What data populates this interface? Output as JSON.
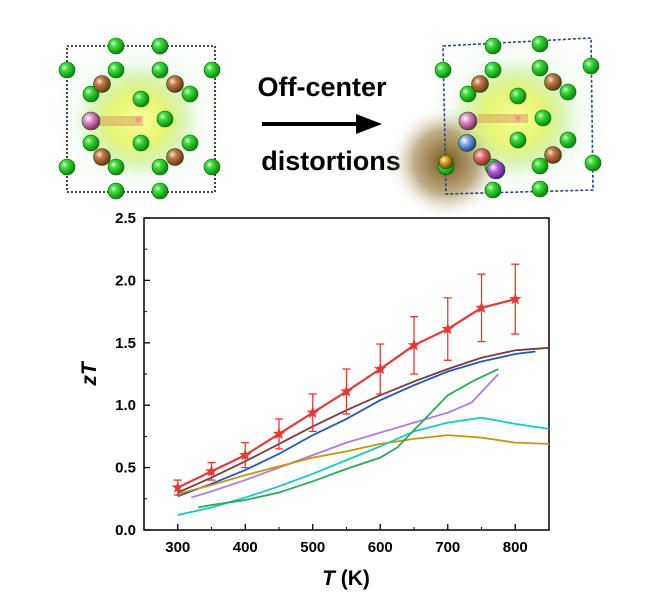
{
  "illustration": {
    "caption_line1": "Off-center",
    "caption_line2": "distortions"
  },
  "colors": {
    "green_atom": "#22cc22",
    "brown_atom": "#b5673a",
    "pink_atom": "#c8509a",
    "blue_atom": "#5a8ad6",
    "purple_atom": "#a13cc8",
    "red_atom": "#d04848",
    "glow": "#e8f560"
  },
  "chart_data": {
    "type": "line",
    "title": "",
    "xlabel": "T (K)",
    "xlabel_parts": [
      "T",
      " (K)"
    ],
    "ylabel": "zT",
    "ylabel_parts": [
      "z",
      "T"
    ],
    "xlim": [
      250,
      850
    ],
    "ylim": [
      0.0,
      2.5
    ],
    "xticks": [
      "300",
      "400",
      "500",
      "600",
      "700",
      "800"
    ],
    "xtick_values": [
      300,
      400,
      500,
      600,
      700,
      800
    ],
    "yticks": [
      "0.0",
      "0.5",
      "1.0",
      "1.5",
      "2.0",
      "2.5"
    ],
    "ytick_values": [
      0.0,
      0.5,
      1.0,
      1.5,
      2.0,
      2.5
    ],
    "series": [
      {
        "name": "red-starred",
        "color": "#e53935",
        "marker": "star",
        "x": [
          300,
          350,
          400,
          450,
          500,
          550,
          600,
          650,
          700,
          750,
          800
        ],
        "y": [
          0.34,
          0.47,
          0.6,
          0.77,
          0.94,
          1.11,
          1.29,
          1.48,
          1.61,
          1.78,
          1.85
        ],
        "err": [
          0.06,
          0.07,
          0.1,
          0.12,
          0.15,
          0.18,
          0.2,
          0.23,
          0.25,
          0.27,
          0.28
        ]
      },
      {
        "name": "brown",
        "color": "#7a3b3b",
        "x": [
          300,
          350,
          400,
          450,
          500,
          550,
          600,
          650,
          700,
          750,
          800,
          850
        ],
        "y": [
          0.3,
          0.42,
          0.55,
          0.69,
          0.83,
          0.96,
          1.08,
          1.19,
          1.29,
          1.38,
          1.44,
          1.46
        ]
      },
      {
        "name": "blue",
        "color": "#1f57c4",
        "x": [
          300,
          350,
          400,
          450,
          500,
          550,
          600,
          650,
          700,
          750,
          800,
          830
        ],
        "y": [
          0.27,
          0.37,
          0.48,
          0.61,
          0.76,
          0.89,
          1.04,
          1.16,
          1.27,
          1.35,
          1.41,
          1.43
        ]
      },
      {
        "name": "purple",
        "color": "#b07ae0",
        "x": [
          320,
          350,
          400,
          450,
          500,
          550,
          600,
          650,
          700,
          735,
          775
        ],
        "y": [
          0.26,
          0.31,
          0.4,
          0.5,
          0.6,
          0.7,
          0.78,
          0.86,
          0.94,
          1.02,
          1.25
        ]
      },
      {
        "name": "gold",
        "color": "#c8960a",
        "x": [
          300,
          350,
          400,
          450,
          500,
          550,
          600,
          650,
          700,
          750,
          800,
          850
        ],
        "y": [
          0.29,
          0.36,
          0.44,
          0.51,
          0.58,
          0.63,
          0.69,
          0.73,
          0.76,
          0.74,
          0.7,
          0.69
        ]
      },
      {
        "name": "cyan",
        "color": "#19c8c8",
        "x": [
          300,
          350,
          400,
          450,
          500,
          550,
          600,
          650,
          700,
          750,
          800,
          850
        ],
        "y": [
          0.12,
          0.18,
          0.26,
          0.35,
          0.45,
          0.56,
          0.67,
          0.79,
          0.86,
          0.9,
          0.85,
          0.81
        ]
      },
      {
        "name": "green",
        "color": "#2eaa5a",
        "x": [
          330,
          350,
          400,
          450,
          500,
          550,
          600,
          625,
          650,
          700,
          740,
          775
        ],
        "y": [
          0.18,
          0.2,
          0.24,
          0.3,
          0.39,
          0.49,
          0.58,
          0.66,
          0.8,
          1.08,
          1.2,
          1.29
        ]
      }
    ]
  }
}
